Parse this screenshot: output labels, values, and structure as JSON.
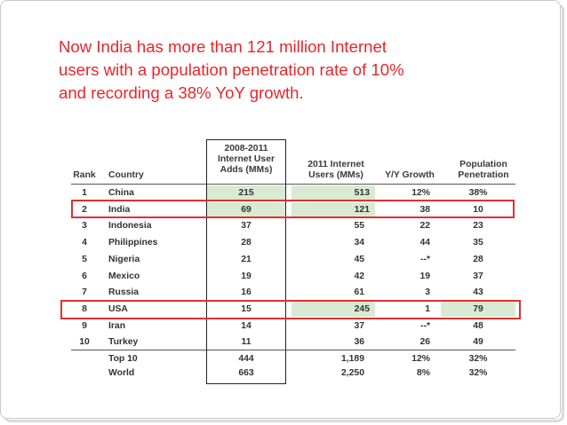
{
  "headline": {
    "line1": "Now India has more than 121 million Internet",
    "line2": "users with a population penetration rate of 10%",
    "line3": "and recording a 38% YoY growth."
  },
  "table": {
    "headers": {
      "rank": "Rank",
      "country": "Country",
      "adds_l1": "2008-2011",
      "adds_l2": "Internet User",
      "adds_l3": "Adds (MMs)",
      "users_l1": "2011 Internet",
      "users_l2": "Users (MMs)",
      "growth": "Y/Y Growth",
      "pen_l1": "Population",
      "pen_l2": "Penetration"
    },
    "rows": [
      {
        "rank": "1",
        "country": "China",
        "adds": "215",
        "users": "513",
        "growth": "12%",
        "pen": "38%"
      },
      {
        "rank": "2",
        "country": "India",
        "adds": "69",
        "users": "121",
        "growth": "38",
        "pen": "10"
      },
      {
        "rank": "3",
        "country": "Indonesia",
        "adds": "37",
        "users": "55",
        "growth": "22",
        "pen": "23"
      },
      {
        "rank": "4",
        "country": "Philippines",
        "adds": "28",
        "users": "34",
        "growth": "44",
        "pen": "35"
      },
      {
        "rank": "5",
        "country": "Nigeria",
        "adds": "21",
        "users": "45",
        "growth": "--*",
        "pen": "28"
      },
      {
        "rank": "6",
        "country": "Mexico",
        "adds": "19",
        "users": "42",
        "growth": "19",
        "pen": "37"
      },
      {
        "rank": "7",
        "country": "Russia",
        "adds": "16",
        "users": "61",
        "growth": "3",
        "pen": "43"
      },
      {
        "rank": "8",
        "country": "USA",
        "adds": "15",
        "users": "245",
        "growth": "1",
        "pen": "79"
      },
      {
        "rank": "9",
        "country": "Iran",
        "adds": "14",
        "users": "37",
        "growth": "--*",
        "pen": "48"
      },
      {
        "rank": "10",
        "country": "Turkey",
        "adds": "11",
        "users": "36",
        "growth": "26",
        "pen": "49"
      }
    ],
    "totals": [
      {
        "label": "Top 10",
        "adds": "444",
        "users": "1,189",
        "growth": "12%",
        "pen": "32%"
      },
      {
        "label": "World",
        "adds": "663",
        "users": "2,250",
        "growth": "8%",
        "pen": "32%"
      }
    ]
  }
}
